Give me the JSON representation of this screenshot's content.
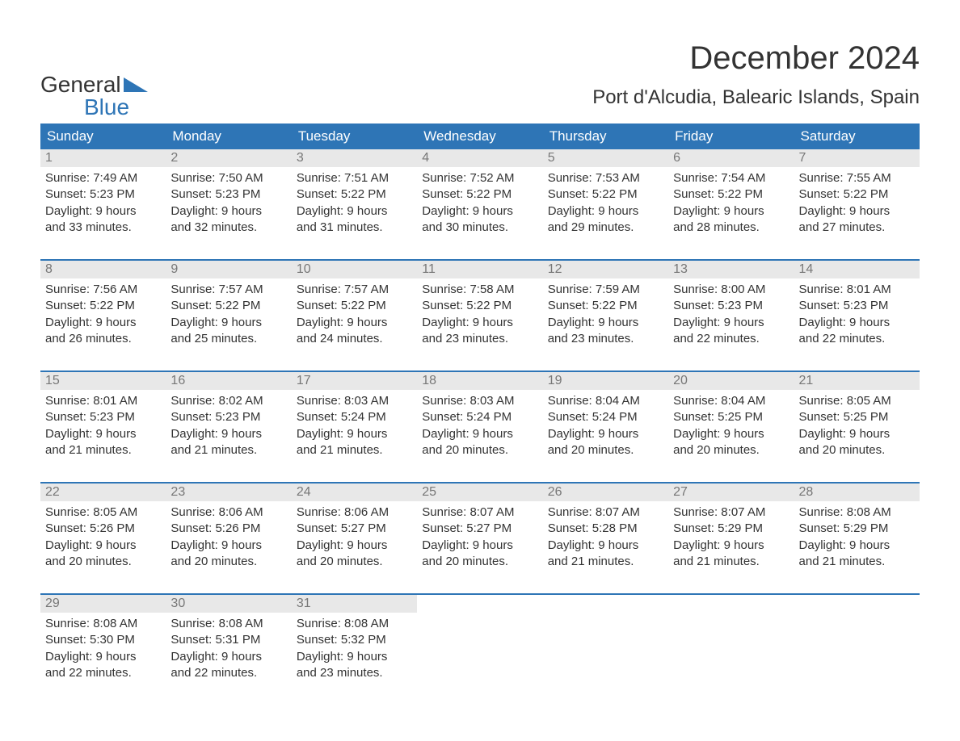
{
  "logo": {
    "word1": "General",
    "word2": "Blue",
    "accent_color": "#2e75b6"
  },
  "title": "December 2024",
  "location": "Port d'Alcudia, Balearic Islands, Spain",
  "colors": {
    "header_bg": "#2e75b6",
    "header_text": "#ffffff",
    "daynum_bg": "#e8e8e8",
    "daynum_text": "#777777",
    "body_text": "#333333",
    "row_divider": "#2e75b6",
    "page_bg": "#ffffff"
  },
  "day_names": [
    "Sunday",
    "Monday",
    "Tuesday",
    "Wednesday",
    "Thursday",
    "Friday",
    "Saturday"
  ],
  "weeks": [
    [
      {
        "n": "1",
        "sunrise": "Sunrise: 7:49 AM",
        "sunset": "Sunset: 5:23 PM",
        "d1": "Daylight: 9 hours",
        "d2": "and 33 minutes."
      },
      {
        "n": "2",
        "sunrise": "Sunrise: 7:50 AM",
        "sunset": "Sunset: 5:23 PM",
        "d1": "Daylight: 9 hours",
        "d2": "and 32 minutes."
      },
      {
        "n": "3",
        "sunrise": "Sunrise: 7:51 AM",
        "sunset": "Sunset: 5:22 PM",
        "d1": "Daylight: 9 hours",
        "d2": "and 31 minutes."
      },
      {
        "n": "4",
        "sunrise": "Sunrise: 7:52 AM",
        "sunset": "Sunset: 5:22 PM",
        "d1": "Daylight: 9 hours",
        "d2": "and 30 minutes."
      },
      {
        "n": "5",
        "sunrise": "Sunrise: 7:53 AM",
        "sunset": "Sunset: 5:22 PM",
        "d1": "Daylight: 9 hours",
        "d2": "and 29 minutes."
      },
      {
        "n": "6",
        "sunrise": "Sunrise: 7:54 AM",
        "sunset": "Sunset: 5:22 PM",
        "d1": "Daylight: 9 hours",
        "d2": "and 28 minutes."
      },
      {
        "n": "7",
        "sunrise": "Sunrise: 7:55 AM",
        "sunset": "Sunset: 5:22 PM",
        "d1": "Daylight: 9 hours",
        "d2": "and 27 minutes."
      }
    ],
    [
      {
        "n": "8",
        "sunrise": "Sunrise: 7:56 AM",
        "sunset": "Sunset: 5:22 PM",
        "d1": "Daylight: 9 hours",
        "d2": "and 26 minutes."
      },
      {
        "n": "9",
        "sunrise": "Sunrise: 7:57 AM",
        "sunset": "Sunset: 5:22 PM",
        "d1": "Daylight: 9 hours",
        "d2": "and 25 minutes."
      },
      {
        "n": "10",
        "sunrise": "Sunrise: 7:57 AM",
        "sunset": "Sunset: 5:22 PM",
        "d1": "Daylight: 9 hours",
        "d2": "and 24 minutes."
      },
      {
        "n": "11",
        "sunrise": "Sunrise: 7:58 AM",
        "sunset": "Sunset: 5:22 PM",
        "d1": "Daylight: 9 hours",
        "d2": "and 23 minutes."
      },
      {
        "n": "12",
        "sunrise": "Sunrise: 7:59 AM",
        "sunset": "Sunset: 5:22 PM",
        "d1": "Daylight: 9 hours",
        "d2": "and 23 minutes."
      },
      {
        "n": "13",
        "sunrise": "Sunrise: 8:00 AM",
        "sunset": "Sunset: 5:23 PM",
        "d1": "Daylight: 9 hours",
        "d2": "and 22 minutes."
      },
      {
        "n": "14",
        "sunrise": "Sunrise: 8:01 AM",
        "sunset": "Sunset: 5:23 PM",
        "d1": "Daylight: 9 hours",
        "d2": "and 22 minutes."
      }
    ],
    [
      {
        "n": "15",
        "sunrise": "Sunrise: 8:01 AM",
        "sunset": "Sunset: 5:23 PM",
        "d1": "Daylight: 9 hours",
        "d2": "and 21 minutes."
      },
      {
        "n": "16",
        "sunrise": "Sunrise: 8:02 AM",
        "sunset": "Sunset: 5:23 PM",
        "d1": "Daylight: 9 hours",
        "d2": "and 21 minutes."
      },
      {
        "n": "17",
        "sunrise": "Sunrise: 8:03 AM",
        "sunset": "Sunset: 5:24 PM",
        "d1": "Daylight: 9 hours",
        "d2": "and 21 minutes."
      },
      {
        "n": "18",
        "sunrise": "Sunrise: 8:03 AM",
        "sunset": "Sunset: 5:24 PM",
        "d1": "Daylight: 9 hours",
        "d2": "and 20 minutes."
      },
      {
        "n": "19",
        "sunrise": "Sunrise: 8:04 AM",
        "sunset": "Sunset: 5:24 PM",
        "d1": "Daylight: 9 hours",
        "d2": "and 20 minutes."
      },
      {
        "n": "20",
        "sunrise": "Sunrise: 8:04 AM",
        "sunset": "Sunset: 5:25 PM",
        "d1": "Daylight: 9 hours",
        "d2": "and 20 minutes."
      },
      {
        "n": "21",
        "sunrise": "Sunrise: 8:05 AM",
        "sunset": "Sunset: 5:25 PM",
        "d1": "Daylight: 9 hours",
        "d2": "and 20 minutes."
      }
    ],
    [
      {
        "n": "22",
        "sunrise": "Sunrise: 8:05 AM",
        "sunset": "Sunset: 5:26 PM",
        "d1": "Daylight: 9 hours",
        "d2": "and 20 minutes."
      },
      {
        "n": "23",
        "sunrise": "Sunrise: 8:06 AM",
        "sunset": "Sunset: 5:26 PM",
        "d1": "Daylight: 9 hours",
        "d2": "and 20 minutes."
      },
      {
        "n": "24",
        "sunrise": "Sunrise: 8:06 AM",
        "sunset": "Sunset: 5:27 PM",
        "d1": "Daylight: 9 hours",
        "d2": "and 20 minutes."
      },
      {
        "n": "25",
        "sunrise": "Sunrise: 8:07 AM",
        "sunset": "Sunset: 5:27 PM",
        "d1": "Daylight: 9 hours",
        "d2": "and 20 minutes."
      },
      {
        "n": "26",
        "sunrise": "Sunrise: 8:07 AM",
        "sunset": "Sunset: 5:28 PM",
        "d1": "Daylight: 9 hours",
        "d2": "and 21 minutes."
      },
      {
        "n": "27",
        "sunrise": "Sunrise: 8:07 AM",
        "sunset": "Sunset: 5:29 PM",
        "d1": "Daylight: 9 hours",
        "d2": "and 21 minutes."
      },
      {
        "n": "28",
        "sunrise": "Sunrise: 8:08 AM",
        "sunset": "Sunset: 5:29 PM",
        "d1": "Daylight: 9 hours",
        "d2": "and 21 minutes."
      }
    ],
    [
      {
        "n": "29",
        "sunrise": "Sunrise: 8:08 AM",
        "sunset": "Sunset: 5:30 PM",
        "d1": "Daylight: 9 hours",
        "d2": "and 22 minutes."
      },
      {
        "n": "30",
        "sunrise": "Sunrise: 8:08 AM",
        "sunset": "Sunset: 5:31 PM",
        "d1": "Daylight: 9 hours",
        "d2": "and 22 minutes."
      },
      {
        "n": "31",
        "sunrise": "Sunrise: 8:08 AM",
        "sunset": "Sunset: 5:32 PM",
        "d1": "Daylight: 9 hours",
        "d2": "and 23 minutes."
      },
      null,
      null,
      null,
      null
    ]
  ]
}
